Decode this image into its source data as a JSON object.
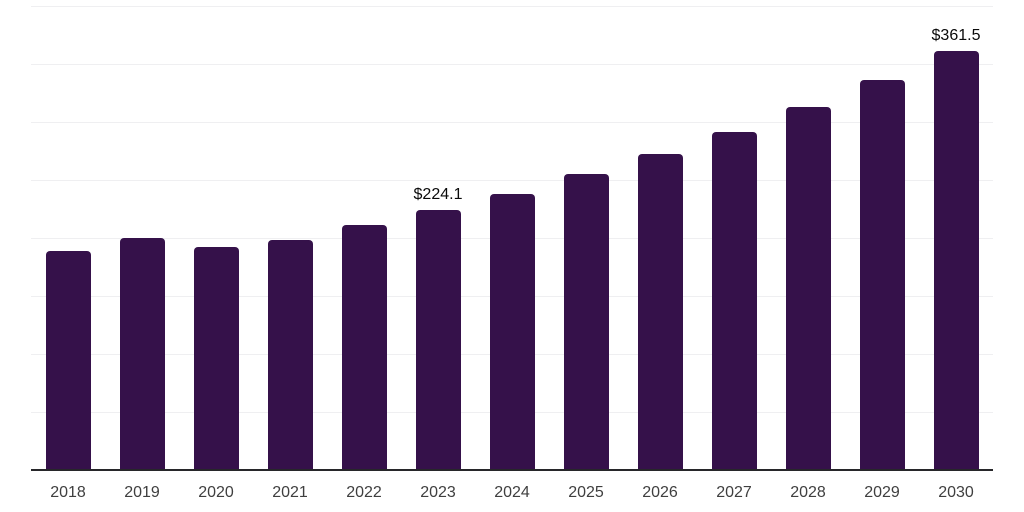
{
  "chart_data": {
    "type": "bar",
    "title": "",
    "categories": [
      "2018",
      "2019",
      "2020",
      "2021",
      "2022",
      "2023",
      "2024",
      "2025",
      "2026",
      "2027",
      "2028",
      "2029",
      "2030"
    ],
    "values": [
      189,
      200,
      192,
      198,
      211,
      224.1,
      238,
      255,
      272,
      291,
      313,
      336,
      361.5
    ],
    "value_labels": [
      null,
      null,
      null,
      null,
      null,
      "$224.1",
      null,
      null,
      null,
      null,
      null,
      null,
      "$361.5"
    ],
    "xlabel": "",
    "ylabel": "",
    "ylim": [
      0,
      400
    ],
    "grid_step": 50,
    "grid": "horizontal-only",
    "legend": "none",
    "y_axis_tick_labels": "none",
    "colors": {
      "bar": "#35114a",
      "axis": "#27272a",
      "gridline": "#efeff1",
      "tick_label": "#3f3f3f",
      "value_label": "#0a0a0a",
      "background": "#ffffff"
    }
  }
}
